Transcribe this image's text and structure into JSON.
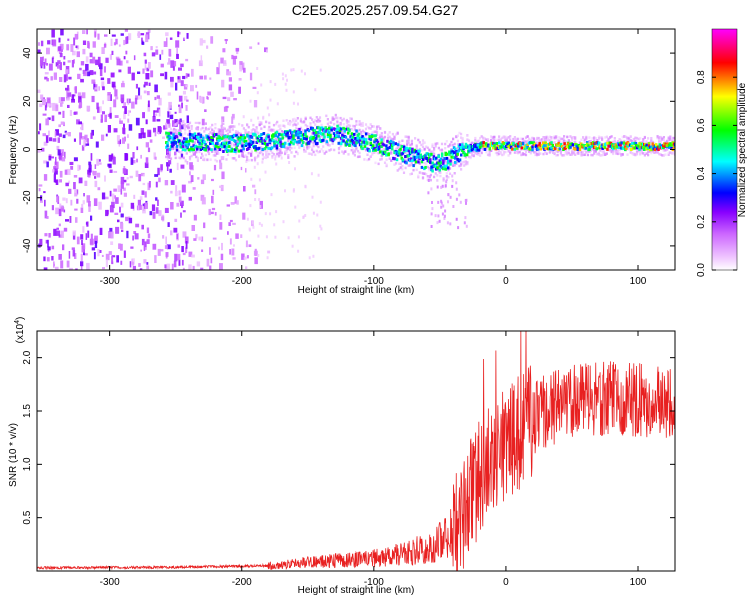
{
  "title": "C2E5.2025.257.09.54.G27",
  "chart_data": [
    {
      "type": "heatmap",
      "name": "spectrogram",
      "xlabel": "Height of straight line (km)",
      "ylabel": "Frequency (Hz)",
      "xlim": [
        -355,
        128
      ],
      "ylim": [
        -50,
        50
      ],
      "xticks": [
        -300,
        -200,
        -100,
        0,
        100
      ],
      "yticks": [
        -40,
        -20,
        0,
        20,
        40
      ],
      "colorbar": {
        "label": "Normalized spectral amplitude",
        "range": [
          0,
          1
        ],
        "ticks": [
          0.0,
          0.2,
          0.4,
          0.6,
          0.8
        ],
        "colors": [
          "#ffffff",
          "#f0c8ff",
          "#cc66ff",
          "#8800ff",
          "#0000ff",
          "#00ffff",
          "#00ff00",
          "#ffff00",
          "#ff0000",
          "#ff00ff"
        ]
      },
      "ridge": {
        "description_points_x": [
          -255,
          -200,
          -150,
          -130,
          -100,
          -75,
          -55,
          -45,
          -35,
          -20,
          0,
          50,
          100,
          128
        ],
        "description_points_y": [
          4,
          3,
          6,
          7,
          3,
          -2,
          -5,
          -4,
          0,
          2,
          2,
          2,
          2,
          2
        ],
        "peak_amplitude_x_range": [
          -20,
          128
        ]
      }
    },
    {
      "type": "line",
      "name": "snr",
      "xlabel": "Height of straight line (km)",
      "ylabel": "SNR (10 * v/v)",
      "multiplier_label": "(x10",
      "multiplier_exp": "4",
      "xlim": [
        -355,
        128
      ],
      "ylim": [
        0,
        2.25
      ],
      "xticks": [
        -300,
        -200,
        -100,
        0,
        100
      ],
      "yticks": [
        0.5,
        1.0,
        1.5,
        2.0
      ],
      "ytick_labels": [
        "0.5",
        "1.0",
        "1.5",
        "2.0"
      ],
      "line_color": "#e82020",
      "trend": {
        "x": [
          -355,
          -250,
          -180,
          -150,
          -100,
          -70,
          -50,
          -35,
          -25,
          -15,
          -5,
          10,
          30,
          50,
          80,
          100,
          128
        ],
        "y": [
          0.03,
          0.035,
          0.05,
          0.08,
          0.12,
          0.18,
          0.28,
          0.45,
          0.75,
          1.0,
          1.15,
          1.3,
          1.5,
          1.6,
          1.62,
          1.6,
          1.55
        ]
      }
    }
  ]
}
